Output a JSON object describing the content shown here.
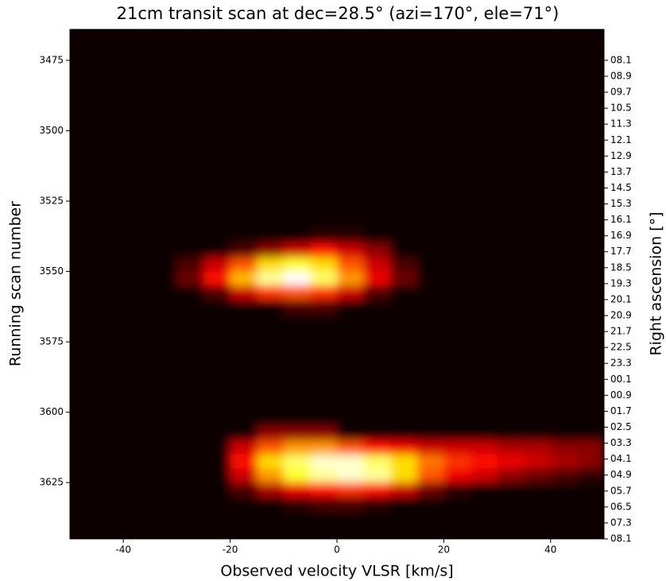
{
  "chart_data": {
    "type": "heatmap",
    "title": "21cm transit scan at dec=28.5° (azi=170°, ele=71°)",
    "x_label": "Observed velocity VLSR [km/s]",
    "y_label": "Running scan number",
    "y2_label": "Right ascension [°]",
    "colormap": "hot",
    "xlim": [
      -50,
      50
    ],
    "ylim": [
      3645,
      3464
    ],
    "xticks": [
      -40,
      -20,
      0,
      20,
      40
    ],
    "yticks": [
      3475,
      3500,
      3525,
      3550,
      3575,
      3600,
      3625
    ],
    "y2_categories": [
      "08.1",
      "08.9",
      "09.7",
      "10.5",
      "11.3",
      "12.1",
      "12.9",
      "13.7",
      "14.5",
      "15.3",
      "16.1",
      "16.9",
      "17.7",
      "18.5",
      "19.3",
      "20.1",
      "20.9",
      "21.7",
      "22.5",
      "23.3",
      "00.1",
      "00.9",
      "01.7",
      "02.5",
      "03.3",
      "04.1",
      "04.9",
      "05.7",
      "06.5",
      "07.3",
      "08.1"
    ],
    "x_bins": [
      -50,
      -45,
      -40,
      -35,
      -30,
      -25,
      -20,
      -15,
      -10,
      -5,
      0,
      5,
      10,
      15,
      20,
      25,
      30,
      35,
      40,
      45,
      50
    ],
    "y_bins": [
      3465,
      3470,
      3475,
      3480,
      3485,
      3490,
      3495,
      3500,
      3505,
      3510,
      3515,
      3520,
      3525,
      3530,
      3535,
      3540,
      3545,
      3550,
      3555,
      3560,
      3565,
      3570,
      3575,
      3580,
      3585,
      3590,
      3595,
      3600,
      3605,
      3610,
      3615,
      3620,
      3625,
      3630,
      3635,
      3640,
      3645
    ],
    "values": [
      [
        0,
        0,
        0,
        0,
        0,
        0,
        0,
        0,
        0,
        0,
        0,
        0,
        0,
        0,
        0,
        0,
        0,
        0,
        0,
        0
      ],
      [
        0,
        0,
        0,
        0,
        0,
        0,
        0,
        0,
        0,
        0,
        0,
        0,
        0,
        0,
        0,
        0,
        0,
        0,
        0,
        0
      ],
      [
        0,
        0,
        0,
        0,
        0,
        0,
        0,
        0,
        0,
        0,
        0,
        0,
        0,
        0,
        0,
        0,
        0,
        0,
        0,
        0
      ],
      [
        0,
        0,
        0,
        0,
        0,
        0,
        0,
        0,
        0,
        0,
        0,
        0,
        0,
        0,
        0,
        0,
        0,
        0,
        0,
        0
      ],
      [
        0,
        0,
        0,
        0,
        0,
        0,
        0,
        0,
        0,
        0,
        0,
        0,
        0,
        0,
        0,
        0,
        0,
        0,
        0,
        0
      ],
      [
        0,
        0,
        0,
        0,
        0,
        0,
        0,
        0,
        0,
        0,
        0,
        0,
        0,
        0,
        0,
        0,
        0,
        0,
        0,
        0
      ],
      [
        0,
        0,
        0,
        0,
        0,
        0,
        0,
        0,
        0,
        0,
        0,
        0,
        0,
        0,
        0,
        0,
        0,
        0,
        0,
        0
      ],
      [
        0,
        0,
        0,
        0,
        0,
        0,
        0,
        0,
        0,
        0,
        0,
        0,
        0,
        0,
        0,
        0,
        0,
        0,
        0,
        0
      ],
      [
        0,
        0,
        0,
        0,
        0,
        0,
        0,
        0,
        0,
        0,
        0,
        0,
        0,
        0,
        0,
        0,
        0,
        0,
        0,
        0
      ],
      [
        0,
        0,
        0,
        0,
        0,
        0,
        0,
        0,
        0,
        0,
        0,
        0,
        0,
        0,
        0,
        0,
        0,
        0,
        0,
        0
      ],
      [
        0,
        0,
        0,
        0,
        0,
        0,
        0,
        0,
        0,
        0,
        0,
        0,
        0,
        0,
        0,
        0,
        0,
        0,
        0,
        0
      ],
      [
        0,
        0,
        0,
        0,
        0,
        0,
        0,
        0,
        0,
        0,
        0,
        0,
        0,
        0,
        0,
        0,
        0,
        0,
        0,
        0
      ],
      [
        0,
        0,
        0,
        0,
        0,
        0,
        0,
        0,
        0,
        0,
        0,
        0,
        0,
        0,
        0,
        0,
        0,
        0,
        0,
        0
      ],
      [
        0,
        0,
        0,
        0,
        0,
        0,
        0,
        0,
        0,
        0,
        0,
        0,
        0,
        0,
        0,
        0,
        0,
        0,
        0,
        0
      ],
      [
        0,
        0,
        0,
        0,
        0,
        0,
        0,
        0,
        0,
        0.05,
        0.05,
        0,
        0,
        0,
        0,
        0,
        0,
        0,
        0,
        0
      ],
      [
        0,
        0,
        0,
        0,
        0,
        0,
        0.1,
        0.2,
        0.3,
        0.4,
        0.3,
        0.2,
        0,
        0,
        0,
        0,
        0,
        0,
        0,
        0
      ],
      [
        0,
        0,
        0,
        0,
        0.1,
        0.3,
        0.5,
        0.7,
        0.8,
        0.7,
        0.5,
        0.3,
        0.1,
        0,
        0,
        0,
        0,
        0,
        0,
        0
      ],
      [
        0,
        0,
        0,
        0,
        0.15,
        0.4,
        0.65,
        0.9,
        1.0,
        0.85,
        0.6,
        0.35,
        0.15,
        0,
        0,
        0,
        0,
        0,
        0,
        0
      ],
      [
        0,
        0,
        0,
        0,
        0,
        0.1,
        0.3,
        0.45,
        0.5,
        0.45,
        0.3,
        0.1,
        0,
        0,
        0,
        0,
        0,
        0,
        0,
        0
      ],
      [
        0,
        0,
        0,
        0,
        0,
        0,
        0,
        0,
        0.1,
        0.1,
        0,
        0,
        0,
        0,
        0,
        0,
        0,
        0,
        0,
        0
      ],
      [
        0,
        0,
        0,
        0,
        0,
        0,
        0,
        0,
        0,
        0,
        0,
        0,
        0,
        0,
        0,
        0,
        0,
        0,
        0,
        0
      ],
      [
        0,
        0,
        0,
        0,
        0,
        0,
        0,
        0,
        0,
        0,
        0,
        0,
        0,
        0,
        0,
        0,
        0,
        0,
        0,
        0
      ],
      [
        0,
        0,
        0,
        0,
        0,
        0,
        0,
        0,
        0,
        0,
        0,
        0,
        0,
        0,
        0,
        0,
        0,
        0,
        0,
        0
      ],
      [
        0,
        0,
        0,
        0,
        0,
        0,
        0,
        0,
        0,
        0,
        0,
        0,
        0,
        0,
        0,
        0,
        0,
        0,
        0,
        0
      ],
      [
        0,
        0,
        0,
        0,
        0,
        0,
        0,
        0,
        0,
        0,
        0,
        0,
        0,
        0,
        0,
        0,
        0,
        0,
        0,
        0
      ],
      [
        0,
        0,
        0,
        0,
        0,
        0,
        0,
        0,
        0,
        0,
        0,
        0,
        0,
        0,
        0,
        0,
        0,
        0,
        0,
        0
      ],
      [
        0,
        0,
        0,
        0,
        0,
        0,
        0,
        0,
        0,
        0,
        0,
        0,
        0,
        0,
        0,
        0,
        0,
        0,
        0,
        0
      ],
      [
        0,
        0,
        0,
        0,
        0,
        0,
        0,
        0,
        0,
        0,
        0,
        0,
        0,
        0,
        0,
        0,
        0,
        0,
        0,
        0
      ],
      [
        0,
        0,
        0,
        0,
        0,
        0,
        0,
        0.2,
        0.2,
        0.2,
        0,
        0,
        0,
        0,
        0,
        0,
        0,
        0,
        0,
        0
      ],
      [
        0,
        0,
        0,
        0,
        0,
        0,
        0.3,
        0.5,
        0.6,
        0.6,
        0.5,
        0.4,
        0.35,
        0.3,
        0.3,
        0.3,
        0.25,
        0.25,
        0.2,
        0.2
      ],
      [
        0,
        0,
        0,
        0,
        0,
        0,
        0.4,
        0.7,
        0.85,
        0.95,
        0.95,
        0.85,
        0.7,
        0.55,
        0.45,
        0.4,
        0.35,
        0.3,
        0.25,
        0.2
      ],
      [
        0,
        0,
        0,
        0,
        0,
        0,
        0.3,
        0.6,
        0.8,
        0.9,
        0.95,
        0.9,
        0.7,
        0.5,
        0.35,
        0.3,
        0.2,
        0.15,
        0.1,
        0.05
      ],
      [
        0,
        0,
        0,
        0,
        0,
        0,
        0.1,
        0.25,
        0.35,
        0.4,
        0.45,
        0.4,
        0.3,
        0.15,
        0.05,
        0,
        0,
        0,
        0,
        0
      ],
      [
        0,
        0,
        0,
        0,
        0,
        0,
        0,
        0,
        0.05,
        0.1,
        0.1,
        0.05,
        0,
        0,
        0,
        0,
        0,
        0,
        0,
        0
      ],
      [
        0,
        0,
        0,
        0,
        0,
        0,
        0,
        0,
        0,
        0,
        0,
        0,
        0,
        0,
        0,
        0,
        0,
        0,
        0,
        0
      ],
      [
        0,
        0,
        0,
        0,
        0,
        0,
        0,
        0,
        0,
        0,
        0,
        0,
        0,
        0,
        0,
        0,
        0,
        0,
        0,
        0
      ]
    ]
  }
}
